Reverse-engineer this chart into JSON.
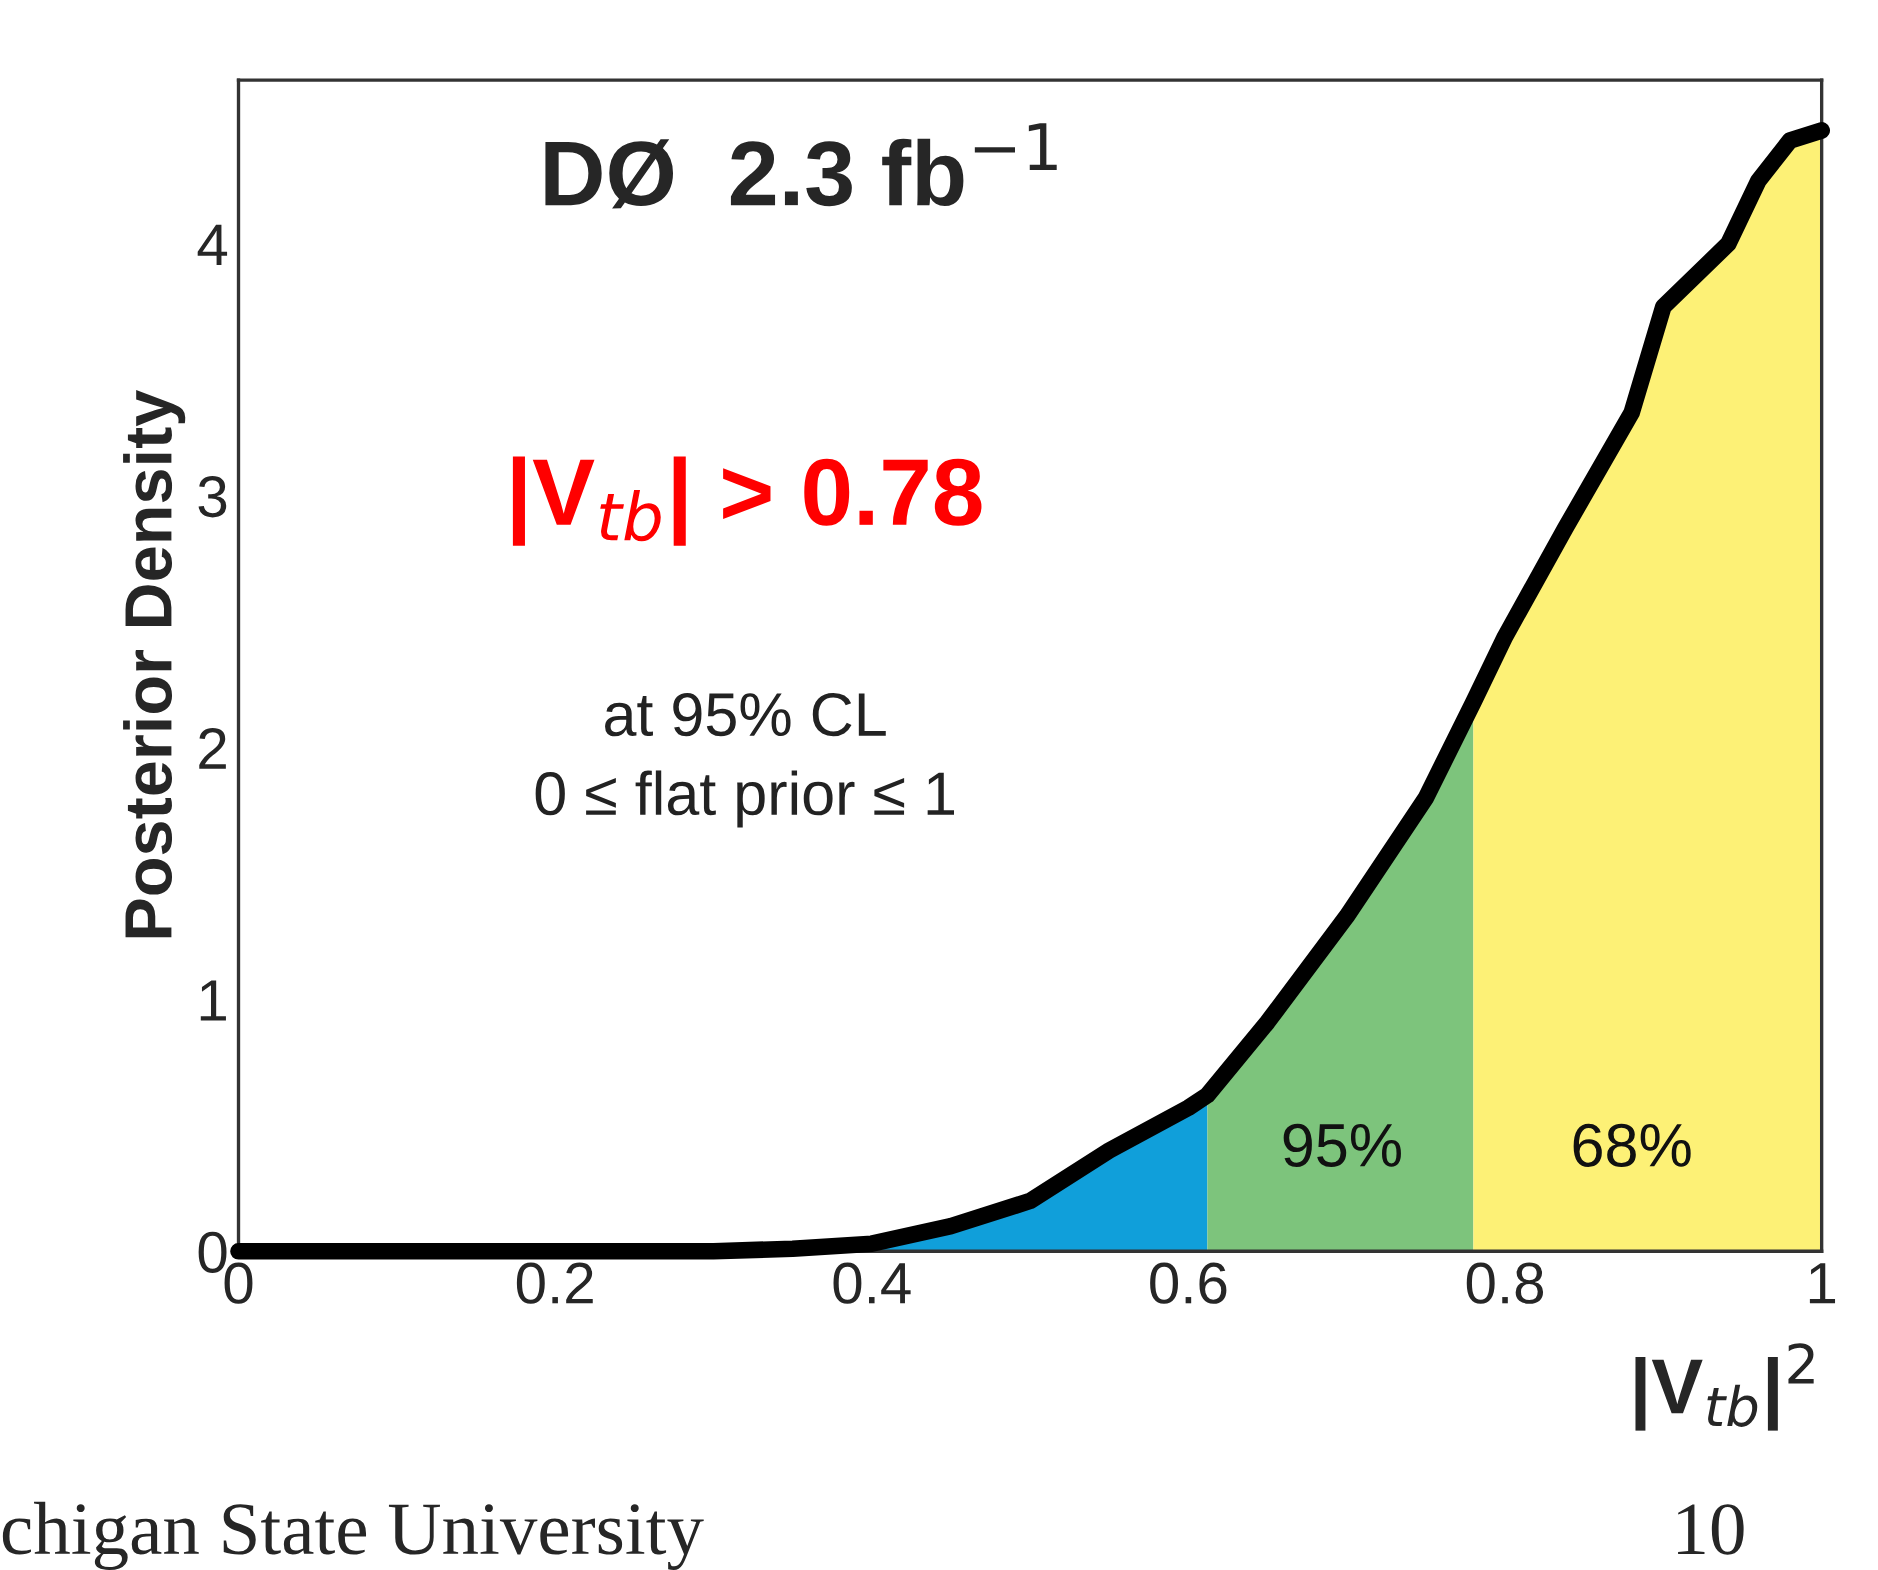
{
  "chart_data": {
    "type": "area",
    "title": "DØ  2.3 fb$^{−1}$",
    "xlabel": "|V$_{tb}$|$^{2}$",
    "ylabel": "Posterior Density",
    "series": [
      {
        "color": "#109fda",
        "x": [
          0.4,
          0.45,
          0.5,
          0.55,
          0.6,
          0.612
        ],
        "values": [
          0.03,
          0.1,
          0.2,
          0.4,
          0.57,
          0.62
        ]
      },
      {
        "color": "#7dc47c",
        "x": [
          0.612,
          0.65,
          0.7,
          0.75,
          0.78
        ],
        "values": [
          0.62,
          0.91,
          1.33,
          1.8,
          2.18
        ]
      },
      {
        "color": "#fdf176",
        "x": [
          0.78,
          0.8,
          0.838,
          0.88,
          0.9,
          0.941,
          0.96,
          0.98,
          1.0
        ],
        "values": [
          2.18,
          2.44,
          2.87,
          3.33,
          3.75,
          4.0,
          4.25,
          4.41,
          4.45
        ]
      },
      {
        "type": "line",
        "color": "#000000",
        "x": [
          0.0,
          0.1,
          0.2,
          0.3,
          0.35,
          0.4,
          0.45,
          0.5,
          0.55,
          0.6,
          0.612,
          0.65,
          0.7,
          0.75,
          0.78,
          0.8,
          0.838,
          0.88,
          0.9,
          0.941,
          0.96,
          0.98,
          1.0
        ],
        "values": [
          0.0,
          0.0,
          0.0,
          0.0,
          0.01,
          0.03,
          0.1,
          0.2,
          0.4,
          0.57,
          0.62,
          0.91,
          1.33,
          1.8,
          2.18,
          2.44,
          2.87,
          3.33,
          3.75,
          4.0,
          4.25,
          4.41,
          4.45
        ]
      }
    ],
    "xlim": [
      0,
      1.0
    ],
    "xticks": [
      0,
      0.2,
      0.4,
      0.6,
      0.8,
      1
    ],
    "ylim": [
      0,
      4.65
    ],
    "yticks": [
      0,
      1,
      2,
      3,
      4
    ],
    "annotations": [
      "95%",
      "68%",
      "|V$_{tb}$| > 0.78",
      "at 95% CL\n0 ≤ flat prior ≤ 1",
      "chigan State University",
      "10"
    ]
  }
}
